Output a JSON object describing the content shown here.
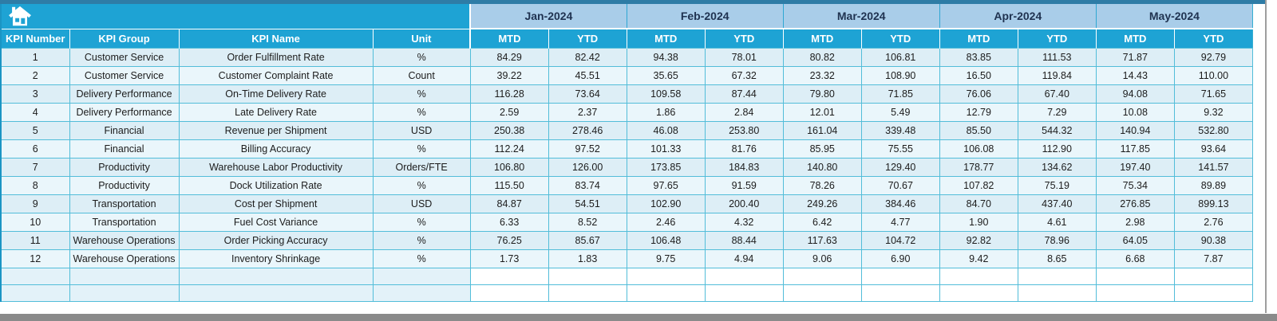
{
  "table_title_area": {
    "icon": "home-icon"
  },
  "columns": [
    "KPI Number",
    "KPI Group",
    "KPI Name",
    "Unit"
  ],
  "months": [
    "Jan-2024",
    "Feb-2024",
    "Mar-2024",
    "Apr-2024",
    "May-2024"
  ],
  "sub_columns": [
    "MTD",
    "YTD"
  ],
  "rows": [
    {
      "kpi_number": "1",
      "kpi_group": "Customer Service",
      "kpi_name": "Order Fulfillment Rate",
      "unit": "%",
      "values": [
        "84.29",
        "82.42",
        "94.38",
        "78.01",
        "80.82",
        "106.81",
        "83.85",
        "111.53",
        "71.87",
        "92.79"
      ]
    },
    {
      "kpi_number": "2",
      "kpi_group": "Customer Service",
      "kpi_name": "Customer Complaint Rate",
      "unit": "Count",
      "values": [
        "39.22",
        "45.51",
        "35.65",
        "67.32",
        "23.32",
        "108.90",
        "16.50",
        "119.84",
        "14.43",
        "110.00"
      ]
    },
    {
      "kpi_number": "3",
      "kpi_group": "Delivery Performance",
      "kpi_name": "On-Time Delivery Rate",
      "unit": "%",
      "values": [
        "116.28",
        "73.64",
        "109.58",
        "87.44",
        "79.80",
        "71.85",
        "76.06",
        "67.40",
        "94.08",
        "71.65"
      ]
    },
    {
      "kpi_number": "4",
      "kpi_group": "Delivery Performance",
      "kpi_name": "Late Delivery Rate",
      "unit": "%",
      "values": [
        "2.59",
        "2.37",
        "1.86",
        "2.84",
        "12.01",
        "5.49",
        "12.79",
        "7.29",
        "10.08",
        "9.32"
      ]
    },
    {
      "kpi_number": "5",
      "kpi_group": "Financial",
      "kpi_name": "Revenue per Shipment",
      "unit": "USD",
      "values": [
        "250.38",
        "278.46",
        "46.08",
        "253.80",
        "161.04",
        "339.48",
        "85.50",
        "544.32",
        "140.94",
        "532.80"
      ]
    },
    {
      "kpi_number": "6",
      "kpi_group": "Financial",
      "kpi_name": "Billing Accuracy",
      "unit": "%",
      "values": [
        "112.24",
        "97.52",
        "101.33",
        "81.76",
        "85.95",
        "75.55",
        "106.08",
        "112.90",
        "117.85",
        "93.64"
      ]
    },
    {
      "kpi_number": "7",
      "kpi_group": "Productivity",
      "kpi_name": "Warehouse Labor Productivity",
      "unit": "Orders/FTE",
      "values": [
        "106.80",
        "126.00",
        "173.85",
        "184.83",
        "140.80",
        "129.40",
        "178.77",
        "134.62",
        "197.40",
        "141.57"
      ]
    },
    {
      "kpi_number": "8",
      "kpi_group": "Productivity",
      "kpi_name": "Dock Utilization Rate",
      "unit": "%",
      "values": [
        "115.50",
        "83.74",
        "97.65",
        "91.59",
        "78.26",
        "70.67",
        "107.82",
        "75.19",
        "75.34",
        "89.89"
      ]
    },
    {
      "kpi_number": "9",
      "kpi_group": "Transportation",
      "kpi_name": "Cost per Shipment",
      "unit": "USD",
      "values": [
        "84.87",
        "54.51",
        "102.90",
        "200.40",
        "249.26",
        "384.46",
        "84.70",
        "437.40",
        "276.85",
        "899.13"
      ]
    },
    {
      "kpi_number": "10",
      "kpi_group": "Transportation",
      "kpi_name": "Fuel Cost Variance",
      "unit": "%",
      "values": [
        "6.33",
        "8.52",
        "2.46",
        "4.32",
        "6.42",
        "4.77",
        "1.90",
        "4.61",
        "2.98",
        "2.76"
      ]
    },
    {
      "kpi_number": "11",
      "kpi_group": "Warehouse Operations",
      "kpi_name": "Order Picking Accuracy",
      "unit": "%",
      "values": [
        "76.25",
        "85.67",
        "106.48",
        "88.44",
        "117.63",
        "104.72",
        "92.82",
        "78.96",
        "64.05",
        "90.38"
      ]
    },
    {
      "kpi_number": "12",
      "kpi_group": "Warehouse Operations",
      "kpi_name": "Inventory Shrinkage",
      "unit": "%",
      "values": [
        "1.73",
        "1.83",
        "9.75",
        "4.94",
        "9.06",
        "6.90",
        "9.42",
        "8.65",
        "6.68",
        "7.87"
      ]
    }
  ],
  "empty_rows": 2,
  "colors": {
    "header_cyan": "#1ea3d4",
    "month_header_blue": "#a9cde9",
    "month_text_navy": "#1f3250",
    "row_odd": "#ddeef6",
    "row_even": "#eaf6fb",
    "grid_line": "#52bdd9",
    "top_strip": "#2e7ca6",
    "window_edge_gray": "#8a8a8a"
  }
}
